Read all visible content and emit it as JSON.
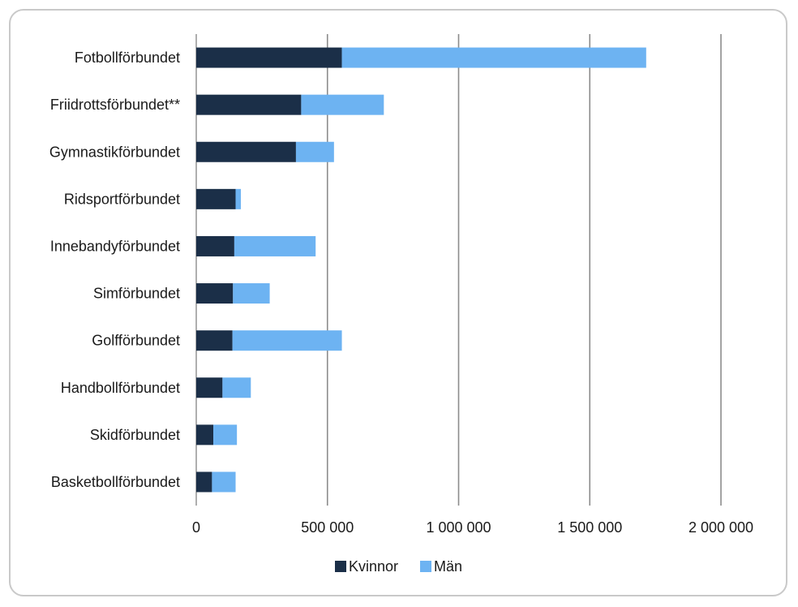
{
  "chart_data": {
    "type": "bar",
    "orientation": "horizontal",
    "stacked": true,
    "title": "",
    "xlabel": "",
    "ylabel": "",
    "categories": [
      "Fotbollförbundet",
      "Friidrottsförbundet**",
      "Gymnastikförbundet",
      "Ridsportförbundet",
      "Innebandyförbundet",
      "Simförbundet",
      "Golfförbundet",
      "Handbollförbundet",
      "Skidförbundet",
      "Basketbollförbundet"
    ],
    "series": [
      {
        "name": "Kvinnor",
        "color": "#1b2f48",
        "values": [
          555000,
          400000,
          380000,
          150000,
          145000,
          140000,
          138000,
          100000,
          65000,
          60000
        ]
      },
      {
        "name": "Män",
        "color": "#6db3f2",
        "values": [
          1160000,
          315000,
          145000,
          20000,
          310000,
          140000,
          417000,
          108000,
          90000,
          90000
        ]
      }
    ],
    "xlim": [
      0,
      2000000
    ],
    "xticks": [
      0,
      500000,
      1000000,
      1500000,
      2000000
    ],
    "xtick_labels": [
      "0",
      "500 000",
      "1 000 000",
      "1 500 000",
      "2 000 000"
    ],
    "grid": "vertical",
    "legend": "bottom"
  }
}
